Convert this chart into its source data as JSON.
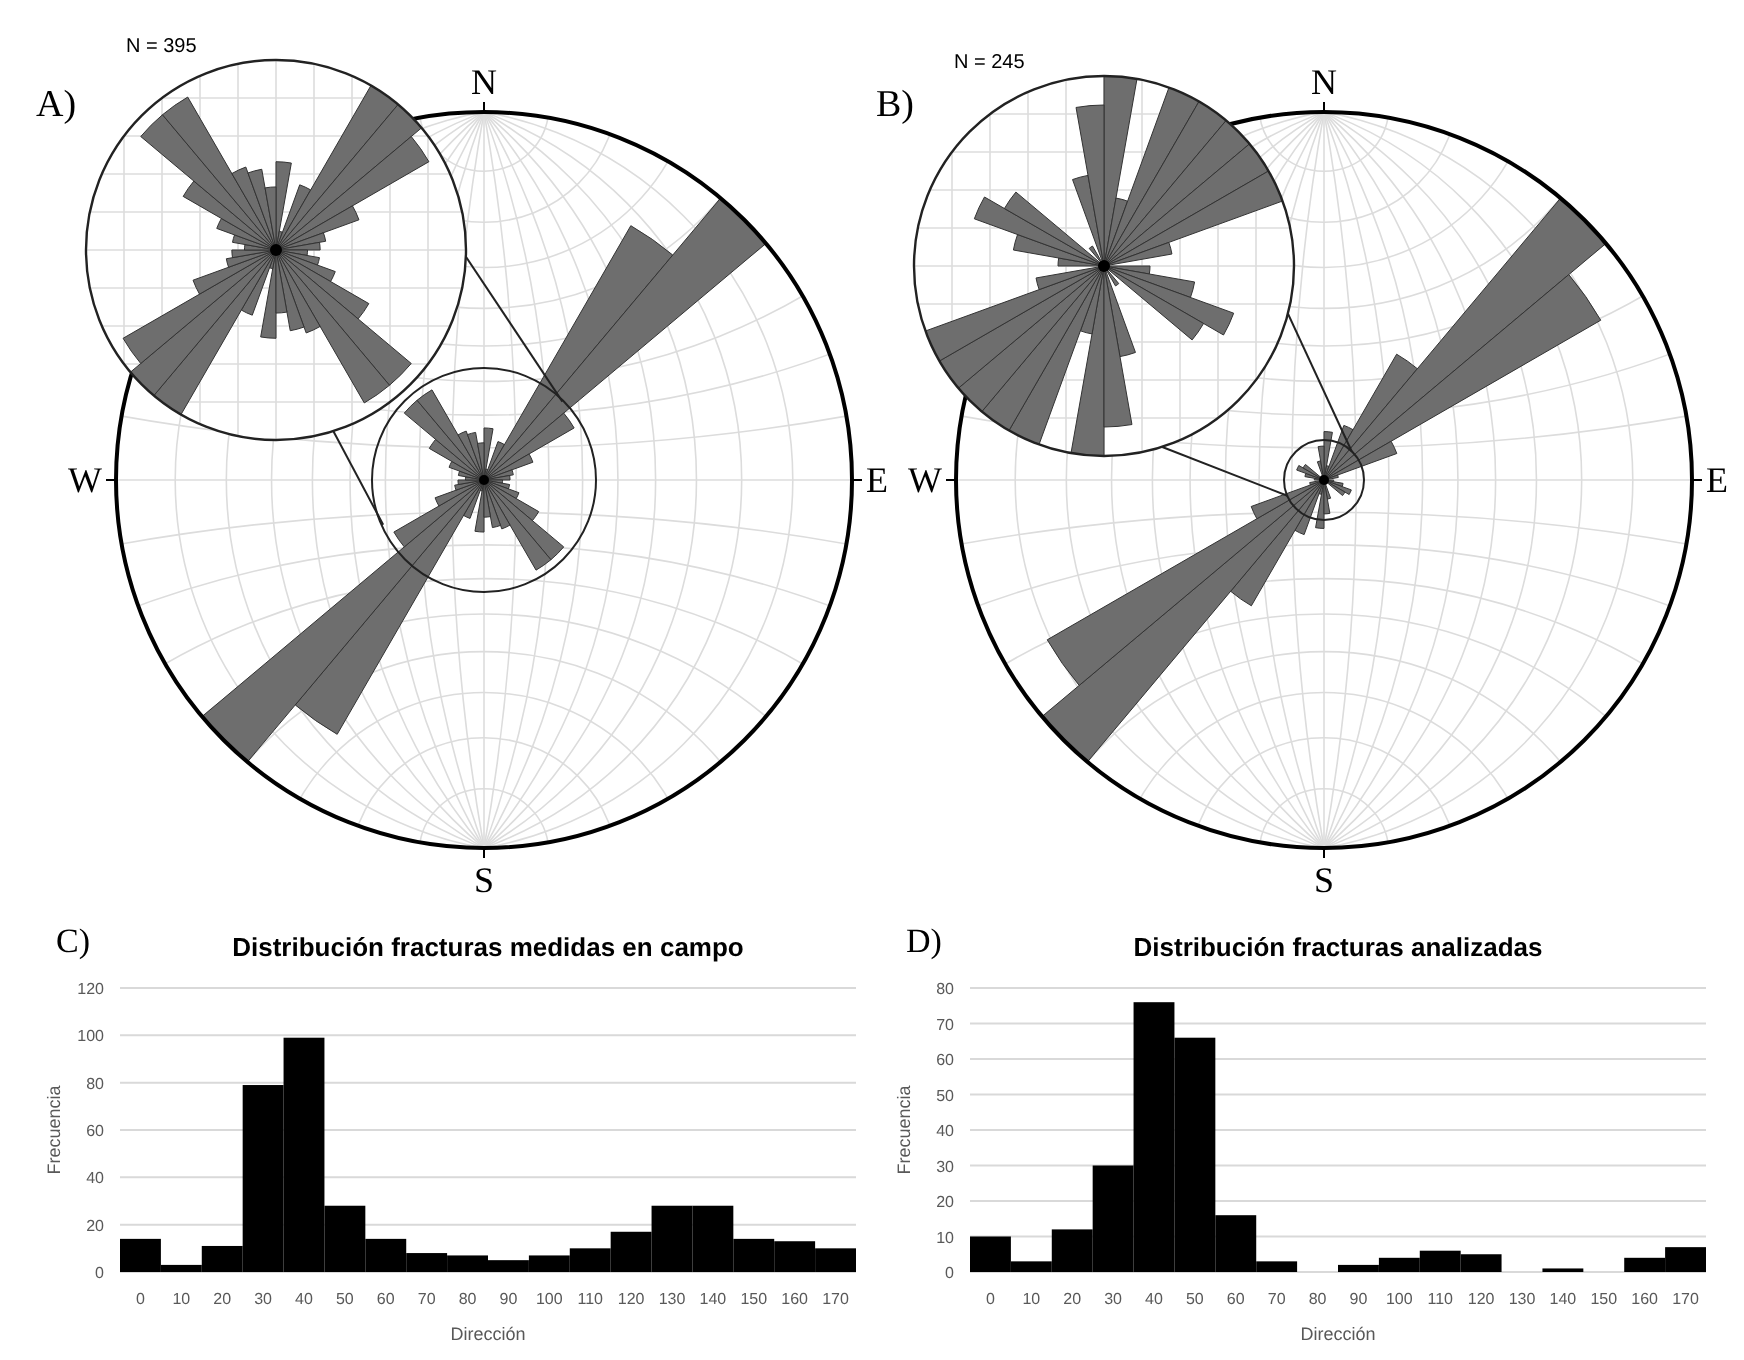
{
  "chart_data": [
    {
      "type": "other",
      "title": "A)",
      "annotations": [
        "N = 395",
        "N",
        "S",
        "E",
        "W"
      ]
    },
    {
      "type": "other",
      "title": "B)",
      "annotations": [
        "N = 245",
        "N",
        "S",
        "E",
        "W"
      ]
    },
    {
      "type": "bar",
      "title": "C)",
      "subtitle": "Distribución fracturas medidas en campo",
      "xlabel": "Dirección",
      "ylabel": "Frecuencia",
      "categories": [
        "0",
        "10",
        "20",
        "30",
        "40",
        "50",
        "60",
        "70",
        "80",
        "90",
        "100",
        "110",
        "120",
        "130",
        "140",
        "150",
        "160",
        "170"
      ],
      "values": [
        14,
        3,
        11,
        79,
        99,
        28,
        14,
        8,
        7,
        5,
        7,
        10,
        17,
        28,
        28,
        14,
        13,
        10
      ],
      "color": "#000000",
      "ylim": [
        0,
        120
      ],
      "yticks": [
        0,
        20,
        40,
        60,
        80,
        100,
        120
      ],
      "grid": "y"
    },
    {
      "type": "bar",
      "title": "D)",
      "subtitle": "Distribución fracturas analizadas",
      "xlabel": "Dirección",
      "ylabel": "Frecuencia",
      "categories": [
        "0",
        "10",
        "20",
        "30",
        "40",
        "50",
        "60",
        "70",
        "80",
        "90",
        "100",
        "110",
        "120",
        "130",
        "140",
        "150",
        "160",
        "170"
      ],
      "values": [
        10,
        3,
        12,
        30,
        76,
        66,
        16,
        3,
        0,
        2,
        4,
        6,
        5,
        0,
        1,
        0,
        4,
        7
      ],
      "color": "#000000",
      "ylim": [
        0,
        80
      ],
      "yticks": [
        0,
        10,
        20,
        30,
        40,
        50,
        60,
        70,
        80
      ],
      "grid": "y"
    }
  ]
}
